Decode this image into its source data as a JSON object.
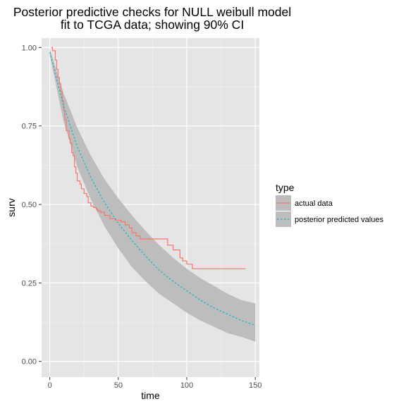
{
  "chart_data": {
    "type": "line",
    "title_lines": [
      "Posterior predictive checks for NULL weibull model",
      "fit to TCGA data; showing 90% CI"
    ],
    "xlabel": "time",
    "ylabel": "surv",
    "xlim": [
      -6,
      153
    ],
    "ylim": [
      -0.05,
      1.03
    ],
    "x_ticks": [
      0,
      50,
      100,
      150
    ],
    "y_ticks": [
      0.0,
      0.25,
      0.5,
      0.75,
      1.0
    ],
    "x_tick_labels": [
      "0",
      "50",
      "100",
      "150"
    ],
    "y_tick_labels": [
      "0.00",
      "0.25",
      "0.50",
      "0.75",
      "1.00"
    ],
    "grid": true,
    "background": "#e5e5e5",
    "legend": {
      "title": "type",
      "placement": "right",
      "entries": [
        "actual data",
        "posterior predicted values"
      ]
    },
    "colors": {
      "actual": "#f8766d",
      "posterior": "#00bfc4",
      "ci_band": "#bdbdbd"
    },
    "series": [
      {
        "name": "actual data",
        "style": "step",
        "x": [
          1,
          2,
          4,
          5,
          6,
          7,
          8,
          9,
          10,
          11,
          12,
          14,
          15,
          16,
          17,
          18,
          19,
          20,
          22,
          23,
          25,
          27,
          28,
          30,
          32,
          34,
          35,
          37,
          40,
          44,
          48,
          52,
          55,
          58,
          60,
          63,
          66,
          70,
          86,
          90,
          95,
          97,
          100,
          104,
          143
        ],
        "y": [
          1.0,
          0.99,
          0.96,
          0.93,
          0.905,
          0.885,
          0.86,
          0.83,
          0.8,
          0.77,
          0.735,
          0.71,
          0.695,
          0.665,
          0.655,
          0.62,
          0.6,
          0.575,
          0.565,
          0.55,
          0.535,
          0.525,
          0.505,
          0.495,
          0.49,
          0.485,
          0.48,
          0.475,
          0.465,
          0.455,
          0.45,
          0.445,
          0.435,
          0.425,
          0.41,
          0.4,
          0.39,
          0.39,
          0.37,
          0.355,
          0.33,
          0.32,
          0.31,
          0.295,
          0.295
        ]
      },
      {
        "name": "posterior predicted values",
        "style": "dotted",
        "x": [
          0,
          10,
          20,
          30,
          40,
          50,
          60,
          70,
          80,
          90,
          100,
          110,
          120,
          130,
          140,
          150
        ],
        "y": [
          0.985,
          0.815,
          0.685,
          0.585,
          0.505,
          0.44,
          0.385,
          0.335,
          0.29,
          0.255,
          0.225,
          0.195,
          0.17,
          0.15,
          0.13,
          0.115
        ]
      }
    ],
    "ci_band": {
      "x": [
        0,
        10,
        20,
        30,
        40,
        50,
        60,
        70,
        80,
        90,
        100,
        110,
        120,
        130,
        140,
        150
      ],
      "lower": [
        0.975,
        0.765,
        0.62,
        0.515,
        0.43,
        0.36,
        0.3,
        0.255,
        0.215,
        0.185,
        0.155,
        0.13,
        0.11,
        0.09,
        0.078,
        0.063
      ],
      "upper": [
        0.995,
        0.855,
        0.745,
        0.655,
        0.58,
        0.52,
        0.465,
        0.415,
        0.37,
        0.33,
        0.295,
        0.265,
        0.24,
        0.215,
        0.195,
        0.185
      ]
    }
  }
}
